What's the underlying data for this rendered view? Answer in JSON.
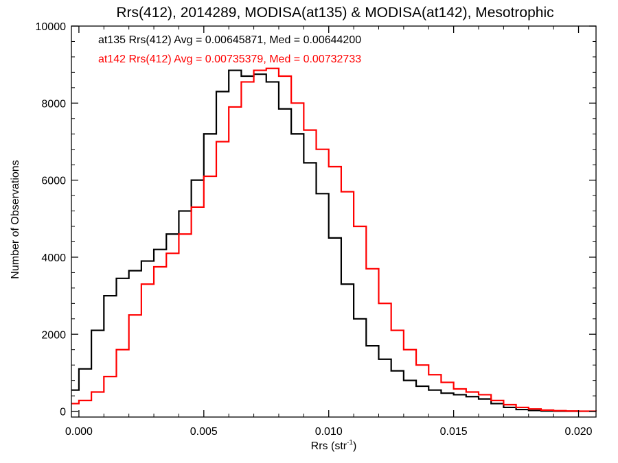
{
  "chart_data": {
    "type": "line",
    "step": true,
    "title": "Rrs(412), 2014289, MODISA(at135) & MODISA(at142), Mesotrophic",
    "xlabel_main": "Rrs (str",
    "xlabel_sup": "-1",
    "xlabel_close": ")",
    "ylabel": "Number of Observations",
    "xlim": [
      -0.0003,
      0.0207
    ],
    "ylim": [
      -150,
      10000
    ],
    "xticks": [
      0.0,
      0.005,
      0.01,
      0.015,
      0.02
    ],
    "xtick_labels": [
      "0.000",
      "0.005",
      "0.010",
      "0.015",
      "0.020"
    ],
    "yticks": [
      0,
      2000,
      4000,
      6000,
      8000,
      10000
    ],
    "ytick_labels": [
      "0",
      "2000",
      "4000",
      "6000",
      "8000",
      "10000"
    ],
    "annotations": [
      "at135 Rrs(412) Avg = 0.00645871, Med = 0.00644200",
      "at142 Rrs(412) Avg = 0.00735379, Med = 0.00732733"
    ],
    "series": [
      {
        "color": "#000000",
        "x": [
          -0.0003,
          0.0,
          0.0005,
          0.001,
          0.0015,
          0.002,
          0.0025,
          0.003,
          0.0035,
          0.004,
          0.0045,
          0.005,
          0.0055,
          0.006,
          0.0065,
          0.007,
          0.0075,
          0.008,
          0.0085,
          0.009,
          0.0095,
          0.01,
          0.0105,
          0.011,
          0.0115,
          0.012,
          0.0125,
          0.013,
          0.0135,
          0.014,
          0.0145,
          0.015,
          0.0155,
          0.016,
          0.0165,
          0.017,
          0.0175,
          0.018,
          0.0185,
          0.019,
          0.0195,
          0.02,
          0.0207
        ],
        "y": [
          550,
          1100,
          2100,
          3000,
          3450,
          3650,
          3900,
          4200,
          4600,
          5200,
          6000,
          7200,
          8300,
          8850,
          8700,
          8750,
          8550,
          7850,
          7200,
          6450,
          5650,
          4500,
          3300,
          2400,
          1700,
          1350,
          1050,
          800,
          650,
          550,
          470,
          430,
          380,
          320,
          200,
          100,
          45,
          20,
          8,
          3,
          1,
          0,
          0
        ]
      },
      {
        "color": "#ff0000",
        "x": [
          -0.0003,
          0.0,
          0.0005,
          0.001,
          0.0015,
          0.002,
          0.0025,
          0.003,
          0.0035,
          0.004,
          0.0045,
          0.005,
          0.0055,
          0.006,
          0.0065,
          0.007,
          0.0075,
          0.008,
          0.0085,
          0.009,
          0.0095,
          0.01,
          0.0105,
          0.011,
          0.0115,
          0.012,
          0.0125,
          0.013,
          0.0135,
          0.014,
          0.0145,
          0.015,
          0.0155,
          0.016,
          0.0165,
          0.017,
          0.0175,
          0.018,
          0.0185,
          0.019,
          0.0195,
          0.02,
          0.0207
        ],
        "y": [
          200,
          280,
          500,
          900,
          1600,
          2500,
          3300,
          3750,
          4100,
          4600,
          5300,
          6100,
          7000,
          7900,
          8550,
          8850,
          8900,
          8700,
          8000,
          7300,
          6800,
          6350,
          5700,
          4800,
          3700,
          2800,
          2100,
          1600,
          1200,
          950,
          750,
          580,
          500,
          430,
          280,
          170,
          100,
          60,
          30,
          15,
          6,
          2,
          0
        ]
      }
    ]
  }
}
